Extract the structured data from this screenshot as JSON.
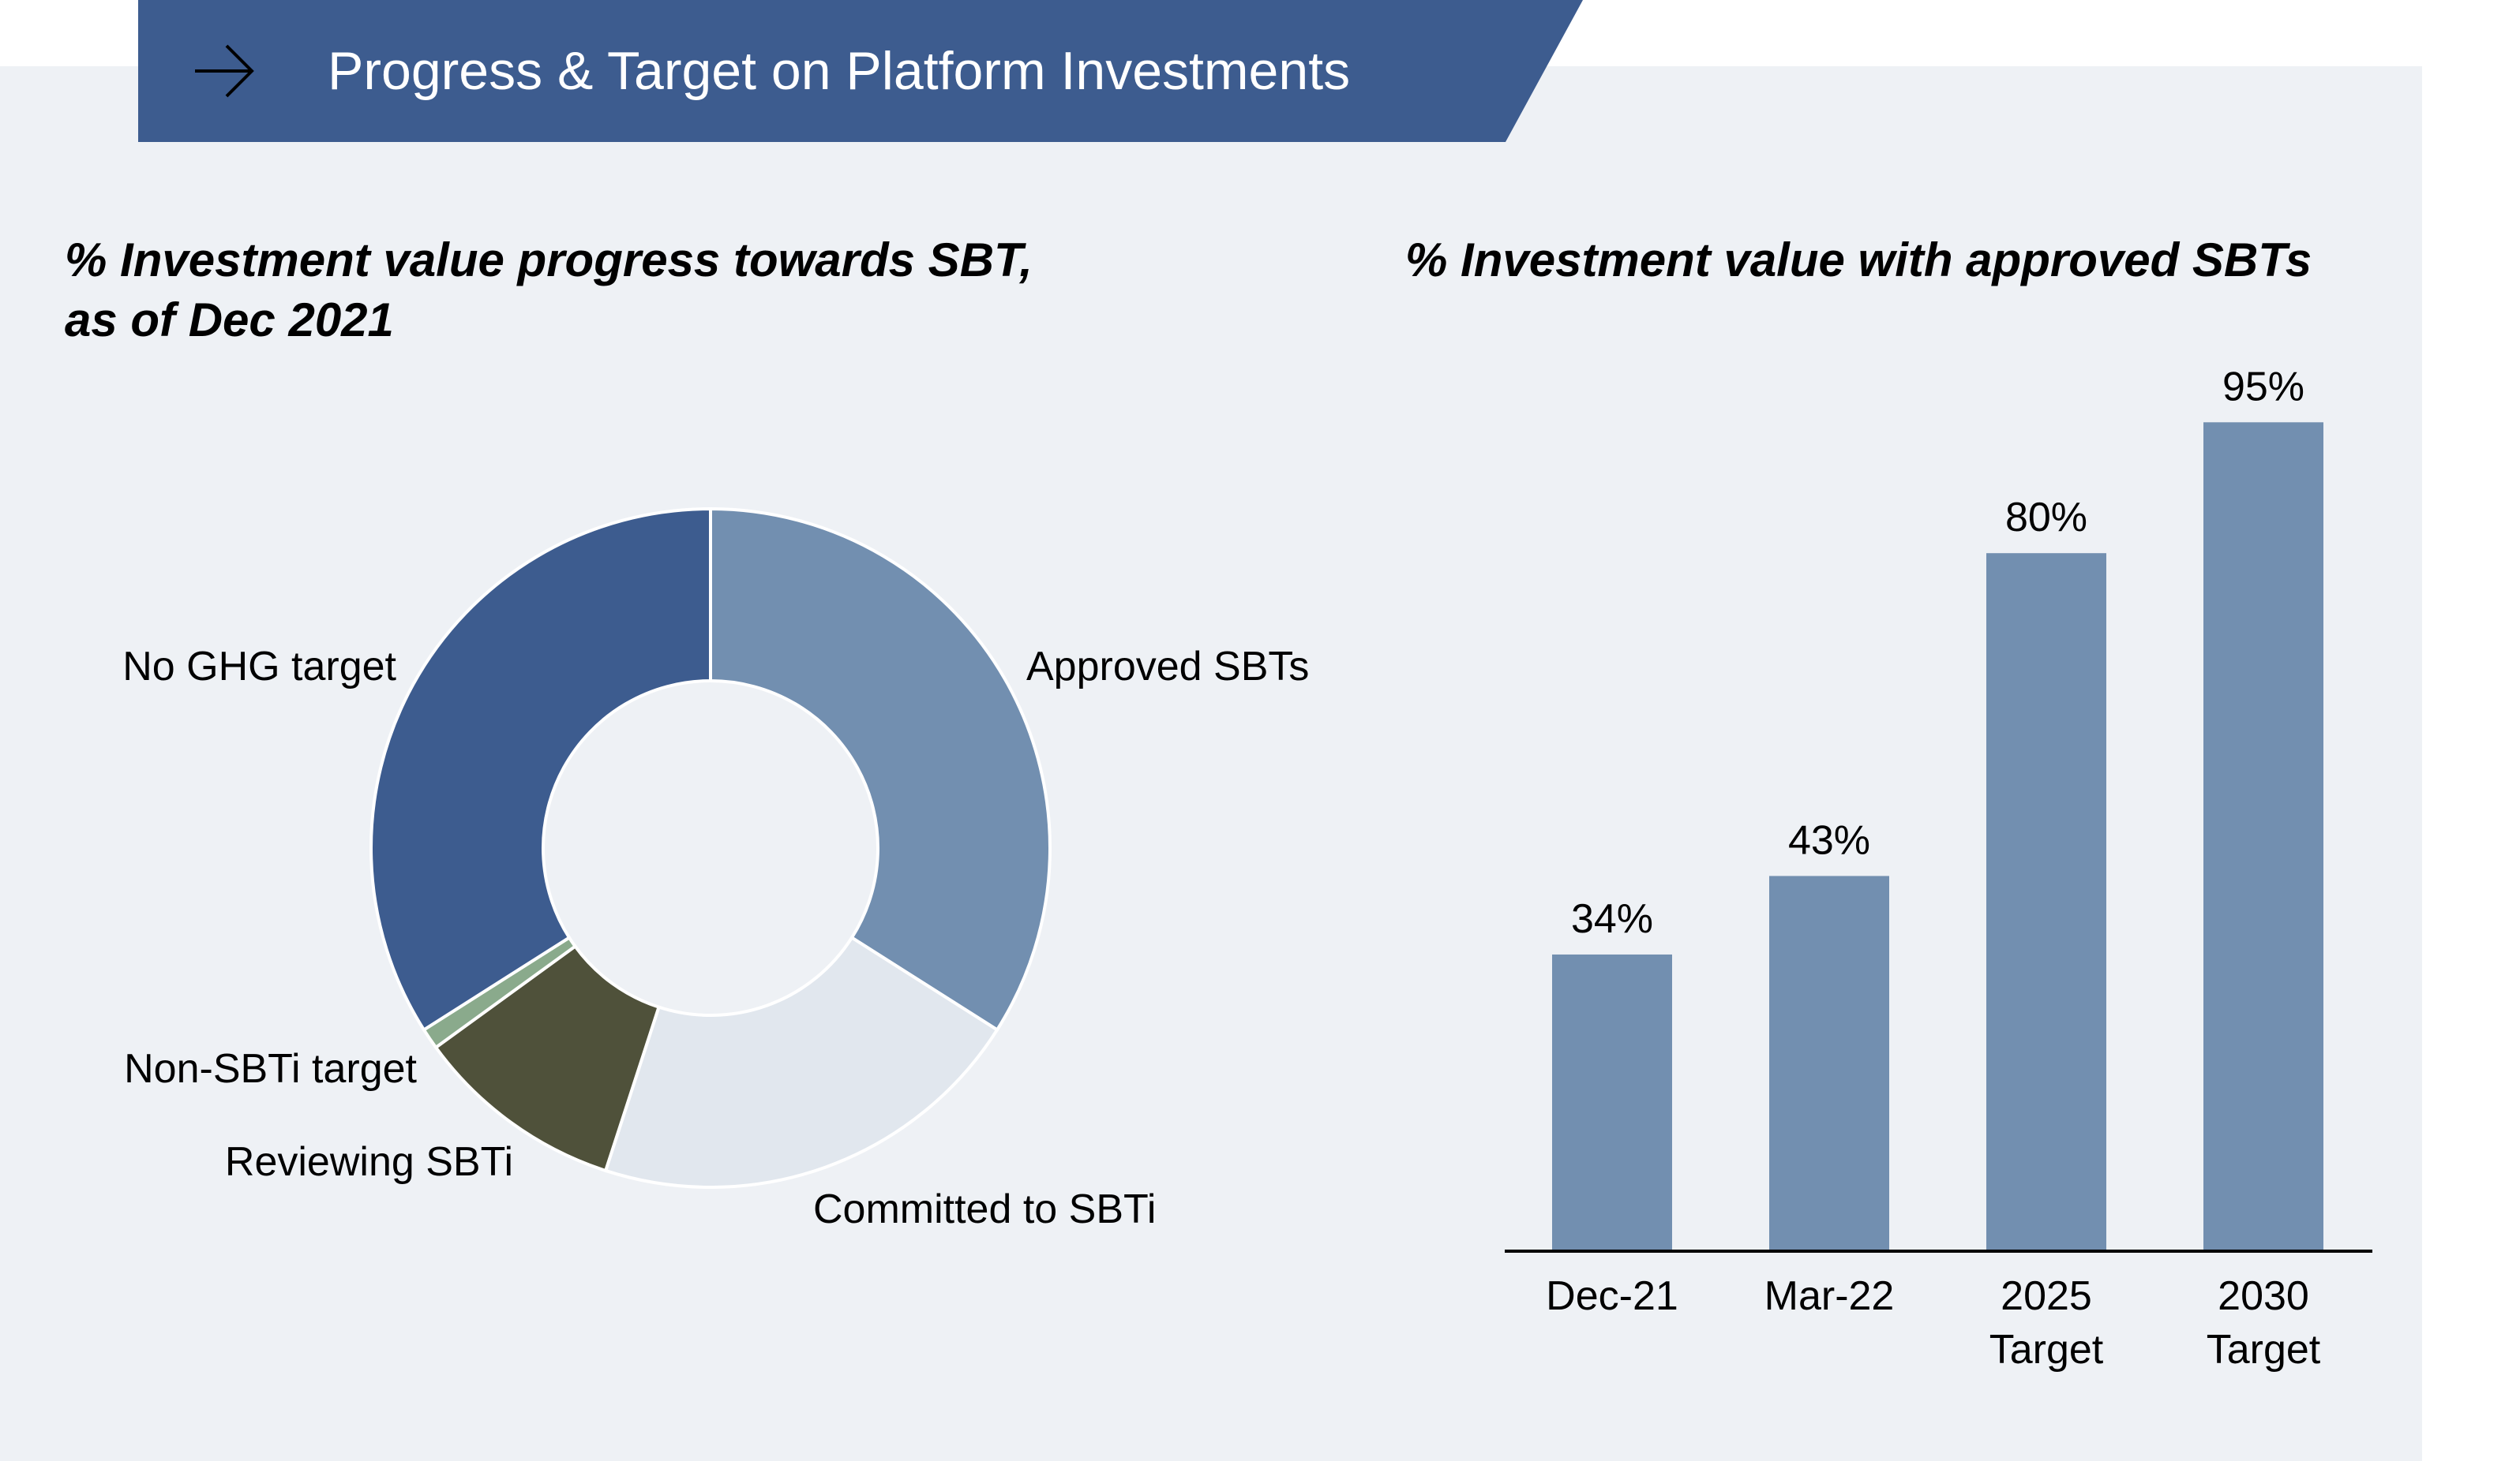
{
  "header": {
    "title": "Progress & Target on Platform Investments",
    "icon": "arrow-right-icon",
    "background": "#3d5c8f"
  },
  "chart_data": [
    {
      "type": "pie",
      "title_line1": "% Investment value progress towards SBT,",
      "title_line2": "as of Dec 2021",
      "slices": [
        {
          "name": "Approved SBTs",
          "value": 34,
          "color": "#728fb0"
        },
        {
          "name": "Committed to SBTi",
          "value": 21,
          "color": "#e1e7ee"
        },
        {
          "name": "Reviewing SBTi",
          "value": 10,
          "color": "#4f513a"
        },
        {
          "name": "Non-SBTi target",
          "value": 1,
          "color": "#8aaa8c"
        },
        {
          "name": "No GHG target",
          "value": 34,
          "color": "#3d5c8f"
        }
      ],
      "donut": true
    },
    {
      "type": "bar",
      "title": "% Investment value with approved SBTs",
      "categories": [
        [
          "Dec-21"
        ],
        [
          "Mar-22"
        ],
        [
          "2025",
          "Target"
        ],
        [
          "2030",
          "Target"
        ]
      ],
      "values": [
        34,
        43,
        80,
        95
      ],
      "value_labels": [
        "34%",
        "43%",
        "80%",
        "95%"
      ],
      "ylim": [
        0,
        100
      ],
      "color": "#728fb0",
      "grid": false
    }
  ]
}
